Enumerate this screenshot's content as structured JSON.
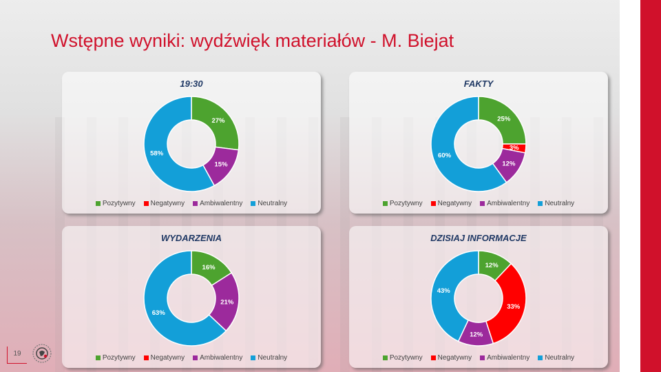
{
  "slide": {
    "title": "Wstępne wyniki: wydźwięk materiałów - M. Biejat",
    "page_number": "19"
  },
  "legend": {
    "labels": [
      "Pozytywny",
      "Negatywny",
      "Ambiwalentny",
      "Neutralny"
    ],
    "colors": [
      "#4da32f",
      "#ff0000",
      "#9c2a9c",
      "#139fd8"
    ]
  },
  "chart_data": [
    {
      "type": "pie",
      "title": "19:30",
      "categories": [
        "Pozytywny",
        "Negatywny",
        "Ambiwalentny",
        "Neutralny"
      ],
      "values": [
        27,
        0,
        15,
        58
      ],
      "labels": [
        "27%",
        "0%",
        "15%",
        "58%"
      ],
      "legend_position": "bottom"
    },
    {
      "type": "pie",
      "title": "FAKTY",
      "categories": [
        "Pozytywny",
        "Negatywny",
        "Ambiwalentny",
        "Neutralny"
      ],
      "values": [
        25,
        3,
        12,
        60
      ],
      "labels": [
        "25%",
        "3%",
        "12%",
        "60%"
      ],
      "legend_position": "bottom"
    },
    {
      "type": "pie",
      "title": "WYDARZENIA",
      "categories": [
        "Pozytywny",
        "Negatywny",
        "Ambiwalentny",
        "Neutralny"
      ],
      "values": [
        16,
        0,
        21,
        63
      ],
      "labels": [
        "16%",
        "0%",
        "21%",
        "63%"
      ],
      "legend_position": "bottom"
    },
    {
      "type": "pie",
      "title": "DZISIAJ INFORMACJE",
      "categories": [
        "Pozytywny",
        "Negatywny",
        "Ambiwalentny",
        "Neutralny"
      ],
      "values": [
        12,
        33,
        12,
        43
      ],
      "labels": [
        "12%",
        "33%",
        "12%",
        "43%"
      ],
      "legend_position": "bottom"
    }
  ]
}
